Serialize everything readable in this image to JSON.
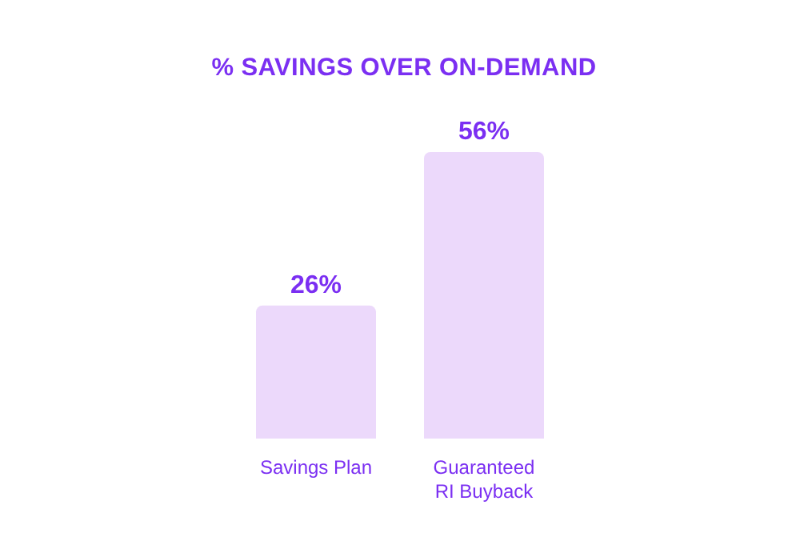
{
  "chart_data": {
    "type": "bar",
    "title": "% SAVINGS OVER ON-DEMAND",
    "categories": [
      "Savings Plan",
      "Guaranteed RI Buyback"
    ],
    "values": [
      26,
      56
    ],
    "value_labels": [
      "26%",
      "56%"
    ],
    "color": "#ecd9fb"
  }
}
